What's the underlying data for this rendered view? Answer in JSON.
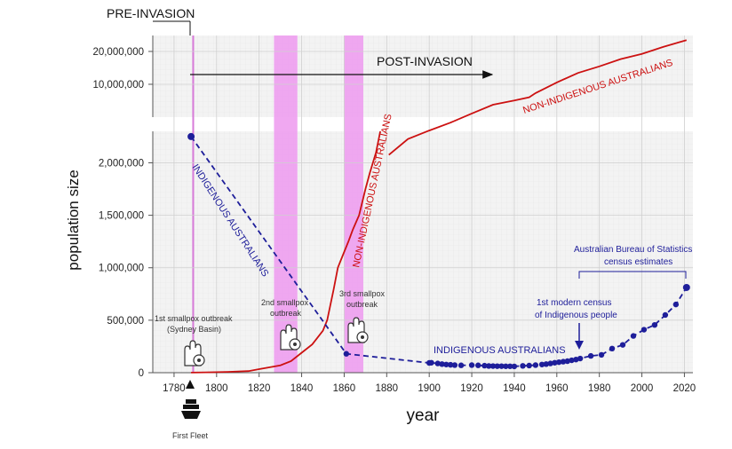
{
  "chart_data": {
    "type": "line",
    "xlabel": "year",
    "ylabel": "population size",
    "xlim": [
      1770,
      2024
    ],
    "x_ticks": [
      "1780",
      "1800",
      "1820",
      "1840",
      "1860",
      "1880",
      "1900",
      "1920",
      "1940",
      "1960",
      "1980",
      "2000",
      "2020"
    ],
    "y_ticks_linear": [
      "0",
      "500,000",
      "1,000,000",
      "1,500,000",
      "2,000,000"
    ],
    "y_ticks_log": [
      "10,000,000",
      "20,000,000"
    ],
    "ylim_linear": [
      0,
      2300000
    ],
    "ylim_log": [
      5000000,
      28000000
    ],
    "period_labels": {
      "pre": "PRE-INVASION",
      "post": "POST-INVASION"
    },
    "smallpox_outbreaks": [
      {
        "range": [
          1789,
          1789
        ],
        "label1": "1st smallpox outbreak",
        "label2": "(Sydney Basin)"
      },
      {
        "range": [
          1827,
          1838
        ],
        "label1": "2nd smallpox",
        "label2": "outbreak"
      },
      {
        "range": [
          1860,
          1869
        ],
        "label1": "3rd smallpox",
        "label2": "outbreak"
      }
    ],
    "series": [
      {
        "name": "NON-INDIGENOUS AUSTRALIANS",
        "color": "#cc1111",
        "style": "solid",
        "points": [
          [
            1788,
            1000
          ],
          [
            1795,
            3000
          ],
          [
            1800,
            5200
          ],
          [
            1805,
            7500
          ],
          [
            1810,
            11500
          ],
          [
            1815,
            15000
          ],
          [
            1820,
            34000
          ],
          [
            1825,
            52000
          ],
          [
            1830,
            70000
          ],
          [
            1835,
            110000
          ],
          [
            1840,
            190000
          ],
          [
            1845,
            270000
          ],
          [
            1850,
            400000
          ],
          [
            1852,
            500000
          ],
          [
            1855,
            790000
          ],
          [
            1857,
            1000000
          ],
          [
            1860,
            1150000
          ],
          [
            1862,
            1250000
          ],
          [
            1864,
            1360000
          ],
          [
            1867,
            1500000
          ],
          [
            1870,
            1750000
          ],
          [
            1872,
            1900000
          ],
          [
            1875,
            2100000
          ],
          [
            1877,
            2300000
          ]
        ],
        "points_log": [
          [
            1881,
            2250000
          ],
          [
            1890,
            3150000
          ],
          [
            1900,
            3770000
          ],
          [
            1910,
            4450000
          ],
          [
            1920,
            5400000
          ],
          [
            1930,
            6500000
          ],
          [
            1940,
            7100000
          ],
          [
            1947,
            7600000
          ],
          [
            1950,
            8300000
          ],
          [
            1960,
            10400000
          ],
          [
            1970,
            12700000
          ],
          [
            1980,
            14600000
          ],
          [
            1990,
            17000000
          ],
          [
            2000,
            19000000
          ],
          [
            2010,
            22000000
          ],
          [
            2021,
            25400000
          ]
        ]
      },
      {
        "name": "INDIGENOUS AUSTRALIANS",
        "color": "#1e1e9a",
        "style": "dashed",
        "points": [
          [
            1788,
            2250000
          ],
          [
            1861,
            180000
          ],
          [
            1900,
            93000
          ],
          [
            1901,
            95000
          ],
          [
            1904,
            88000
          ],
          [
            1906,
            82000
          ],
          [
            1908,
            78000
          ],
          [
            1910,
            75000
          ],
          [
            1912,
            72000
          ],
          [
            1915,
            70000
          ],
          [
            1920,
            72000
          ],
          [
            1923,
            70000
          ],
          [
            1926,
            67000
          ],
          [
            1928,
            64000
          ],
          [
            1930,
            63000
          ],
          [
            1932,
            62000
          ],
          [
            1934,
            62000
          ],
          [
            1936,
            61000
          ],
          [
            1938,
            61000
          ],
          [
            1940,
            60000
          ],
          [
            1944,
            65000
          ],
          [
            1947,
            68000
          ],
          [
            1950,
            72000
          ],
          [
            1953,
            78000
          ],
          [
            1955,
            82000
          ],
          [
            1957,
            88000
          ],
          [
            1959,
            95000
          ],
          [
            1961,
            100000
          ],
          [
            1963,
            105000
          ],
          [
            1965,
            110000
          ],
          [
            1967,
            118000
          ],
          [
            1969,
            125000
          ],
          [
            1971,
            135000
          ],
          [
            1976,
            160000
          ],
          [
            1981,
            170000
          ],
          [
            1986,
            230000
          ],
          [
            1991,
            265000
          ],
          [
            1996,
            350000
          ],
          [
            2001,
            410000
          ],
          [
            2006,
            455000
          ],
          [
            2011,
            550000
          ],
          [
            2016,
            650000
          ],
          [
            2021,
            812000
          ]
        ]
      }
    ]
  },
  "annotations": {
    "first_fleet": "First Fleet",
    "first_census_line1": "1st modern census",
    "first_census_line2": "of Indigenous people",
    "abs_line1": "Australian Bureau of Statistics",
    "abs_line2": "census estimates"
  },
  "colors": {
    "red": "#cc1111",
    "blue": "#1e1e9a",
    "smallpox_band": "#ee9ef0",
    "grid": "#d8d8d8",
    "plot_bg": "#f3f3f3"
  },
  "icons": [
    "smallpox-hand-icon",
    "ship-icon"
  ]
}
